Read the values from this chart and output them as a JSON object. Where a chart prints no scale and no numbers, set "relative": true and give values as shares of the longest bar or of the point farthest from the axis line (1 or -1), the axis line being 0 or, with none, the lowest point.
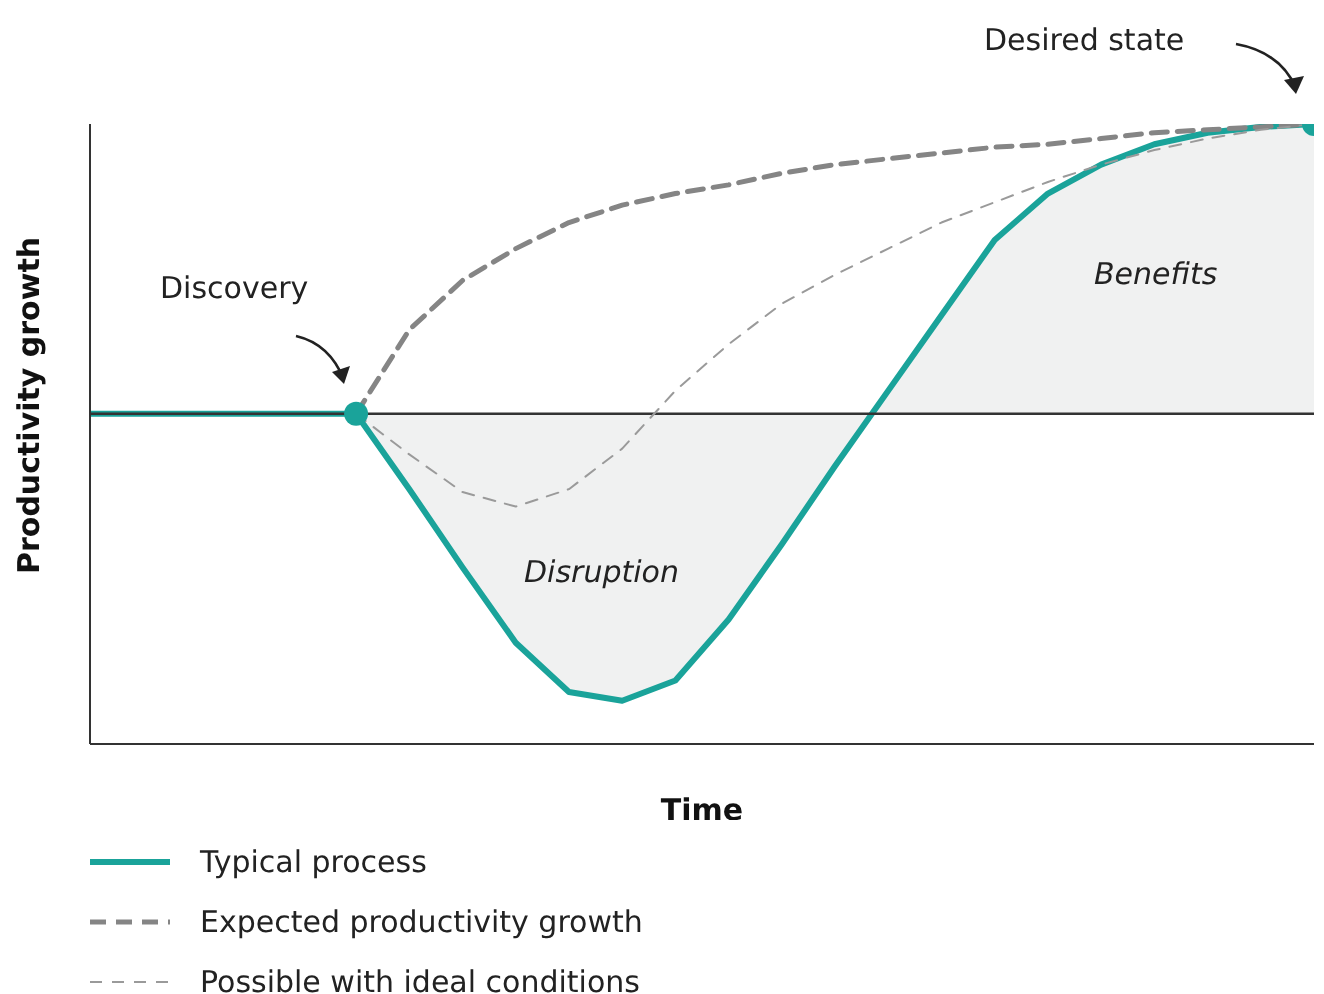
{
  "chart_data": {
    "type": "line",
    "relative": true,
    "xlabel": "Time",
    "ylabel": "Productivity growth",
    "categories": [
      null,
      null,
      null,
      null,
      null,
      null,
      null,
      null,
      null,
      null,
      null,
      null,
      null,
      null,
      null,
      null,
      null,
      null,
      null,
      null,
      null,
      null,
      null,
      null
    ],
    "series": [
      {
        "name": "Typical process",
        "type": "area",
        "color": "#1aa39a",
        "line_style": "solid",
        "values": [
          0,
          0,
          0,
          0,
          0,
          0,
          -0.26,
          -0.53,
          -0.79,
          -0.96,
          -0.99,
          -0.92,
          -0.71,
          -0.45,
          -0.18,
          0.08,
          0.34,
          0.6,
          0.76,
          0.86,
          0.93,
          0.97,
          0.99,
          1
        ]
      },
      {
        "name": "Expected productivity growth",
        "color": "#858585",
        "line_style": "dashed",
        "values": [
          null,
          null,
          null,
          null,
          null,
          0,
          0.29,
          0.46,
          0.57,
          0.66,
          0.72,
          0.76,
          0.79,
          0.83,
          0.86,
          0.88,
          0.9,
          0.92,
          0.93,
          0.95,
          0.97,
          0.98,
          0.99,
          1
        ]
      },
      {
        "name": "Possible with ideal conditions",
        "color": "#9a9a9a",
        "line_style": "dashed",
        "values": [
          null,
          null,
          null,
          null,
          null,
          0,
          -0.14,
          -0.27,
          -0.32,
          -0.26,
          -0.12,
          0.08,
          0.24,
          0.38,
          0.48,
          0.57,
          0.66,
          0.73,
          0.8,
          0.86,
          0.91,
          0.95,
          0.98,
          1
        ]
      }
    ],
    "legend": "bottom",
    "annotations": [
      "Discovery",
      "Desired state",
      "Disruption",
      "Benefits"
    ]
  }
}
